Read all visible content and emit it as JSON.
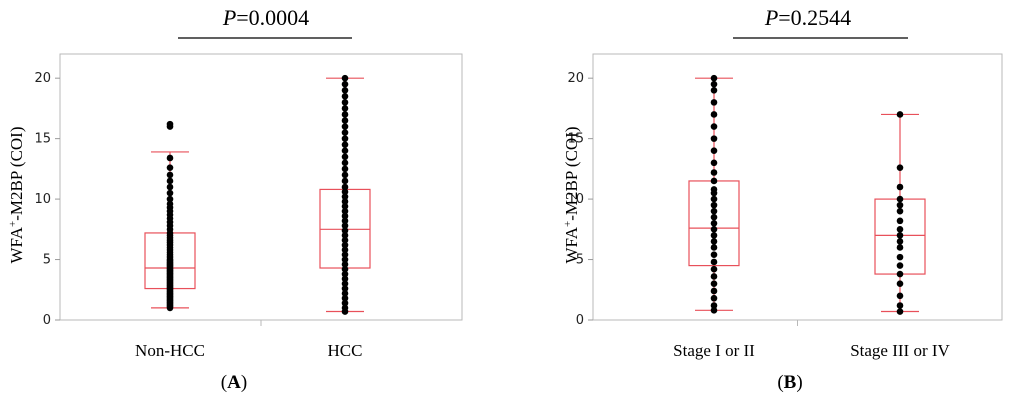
{
  "chart_data": [
    {
      "type": "box",
      "panel_label": "A",
      "p_value": "0.0004",
      "ylabel_main": "WFA",
      "ylabel_sup": "+",
      "ylabel_rest": "-M2BP (COI)",
      "ylim": [
        0,
        22
      ],
      "yticks": [
        "0",
        "5",
        "10",
        "15",
        "20"
      ],
      "box_color": "#e8505a",
      "point_color": "#000000",
      "categories": [
        "Non-HCC",
        "HCC"
      ],
      "boxes": [
        {
          "category": "Non-HCC",
          "min": 1.0,
          "q1": 2.6,
          "median": 4.3,
          "q3": 7.2,
          "max": 13.9,
          "points": [
            1.0,
            1.1,
            1.2,
            1.3,
            1.4,
            1.5,
            1.6,
            1.7,
            1.8,
            1.9,
            2.0,
            2.1,
            2.2,
            2.3,
            2.4,
            2.5,
            2.6,
            2.7,
            2.8,
            2.9,
            3.0,
            3.1,
            3.2,
            3.3,
            3.4,
            3.5,
            3.6,
            3.7,
            3.8,
            3.9,
            4.0,
            4.1,
            4.2,
            4.3,
            4.4,
            4.5,
            4.6,
            4.7,
            4.8,
            4.9,
            5.0,
            5.2,
            5.4,
            5.6,
            5.8,
            6.0,
            6.2,
            6.4,
            6.6,
            6.8,
            7.0,
            7.2,
            7.5,
            7.8,
            8.1,
            8.4,
            8.7,
            9.0,
            9.3,
            9.6,
            10.0,
            10.5,
            11.0,
            11.5,
            12.0,
            12.6,
            13.4,
            16.0,
            16.2
          ]
        },
        {
          "category": "HCC",
          "min": 0.7,
          "q1": 4.3,
          "median": 7.5,
          "q3": 10.8,
          "max": 20.0,
          "points": [
            0.7,
            1.0,
            1.4,
            1.8,
            2.2,
            2.6,
            3.0,
            3.4,
            3.8,
            4.2,
            4.6,
            5.0,
            5.4,
            5.8,
            6.2,
            6.6,
            7.0,
            7.4,
            7.8,
            8.2,
            8.6,
            9.0,
            9.4,
            9.8,
            10.2,
            10.6,
            11.0,
            11.5,
            12.0,
            12.5,
            13.0,
            13.5,
            14.0,
            14.5,
            15.0,
            15.5,
            16.0,
            16.5,
            17.0,
            17.5,
            18.0,
            18.5,
            19.0,
            19.5,
            20.0
          ]
        }
      ]
    },
    {
      "type": "box",
      "panel_label": "B",
      "p_value": "0.2544",
      "ylabel_main": "WFA",
      "ylabel_sup": "+",
      "ylabel_rest": "-M2BP (COI)",
      "ylim": [
        0,
        22
      ],
      "yticks": [
        "0",
        "5",
        "10",
        "15",
        "20"
      ],
      "box_color": "#e8505a",
      "point_color": "#000000",
      "categories": [
        "Stage I or II",
        "Stage III or IV"
      ],
      "boxes": [
        {
          "category": "Stage I or II",
          "min": 0.8,
          "q1": 4.5,
          "median": 7.6,
          "q3": 11.5,
          "max": 20.0,
          "points": [
            0.8,
            1.2,
            1.8,
            2.4,
            3.0,
            3.6,
            4.2,
            4.8,
            5.4,
            6.0,
            6.5,
            7.0,
            7.5,
            8.0,
            8.5,
            9.0,
            9.5,
            10.0,
            10.5,
            10.8,
            11.5,
            12.2,
            13.0,
            14.0,
            15.0,
            16.0,
            17.0,
            18.0,
            19.0,
            19.5,
            20.0
          ]
        },
        {
          "category": "Stage III or IV",
          "min": 0.7,
          "q1": 3.8,
          "median": 7.0,
          "q3": 10.0,
          "max": 17.0,
          "points": [
            0.7,
            1.2,
            2.0,
            3.0,
            3.8,
            4.5,
            5.2,
            6.0,
            6.5,
            7.0,
            7.5,
            8.2,
            9.0,
            9.5,
            10.0,
            11.0,
            12.6,
            17.0
          ]
        }
      ]
    }
  ]
}
